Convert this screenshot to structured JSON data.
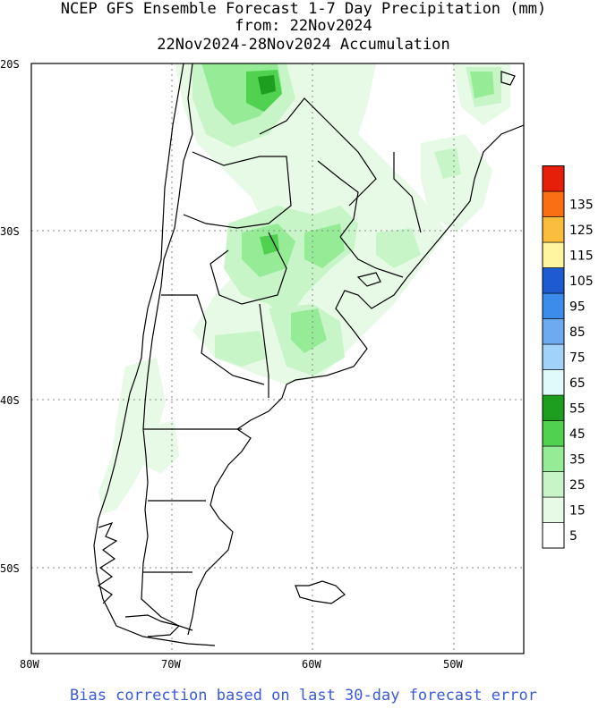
{
  "title": {
    "line1": "NCEP GFS Ensemble Forecast 1-7 Day Precipitation (mm)",
    "line2": "from: 22Nov2024",
    "line3": "22Nov2024-28Nov2024 Accumulation"
  },
  "footer": "Bias correction based on last 30-day forecast error",
  "map": {
    "lat_range": [
      -55,
      -20
    ],
    "lon_range": [
      -80,
      -45
    ],
    "lat_ticks": [
      {
        "value": -20,
        "label": "20S"
      },
      {
        "value": -30,
        "label": "30S"
      },
      {
        "value": -40,
        "label": "40S"
      },
      {
        "value": -50,
        "label": "50S"
      }
    ],
    "lon_ticks": [
      {
        "value": -80,
        "label": "80W"
      },
      {
        "value": -70,
        "label": "70W"
      },
      {
        "value": -60,
        "label": "60W"
      },
      {
        "value": -50,
        "label": "50W"
      }
    ],
    "grid": "dotted"
  },
  "legend": {
    "units": "mm",
    "bins": [
      {
        "label": "5",
        "color": "#ffffff"
      },
      {
        "label": "15",
        "color": "#e6fae6"
      },
      {
        "label": "25",
        "color": "#c8f5c8"
      },
      {
        "label": "35",
        "color": "#96eb96"
      },
      {
        "label": "45",
        "color": "#50d250"
      },
      {
        "label": "55",
        "color": "#1e9e1e"
      },
      {
        "label": "65",
        "color": "#e0fafa"
      },
      {
        "label": "75",
        "color": "#a0d2fa"
      },
      {
        "label": "85",
        "color": "#6eaaf0"
      },
      {
        "label": "95",
        "color": "#3c8ceb"
      },
      {
        "label": "105",
        "color": "#1e5ad2"
      },
      {
        "label": "115",
        "color": "#fff5a0"
      },
      {
        "label": "125",
        "color": "#fabe3c"
      },
      {
        "label": "135",
        "color": "#fa6e14"
      },
      {
        "label": "",
        "color": "#e61e0a"
      }
    ]
  }
}
